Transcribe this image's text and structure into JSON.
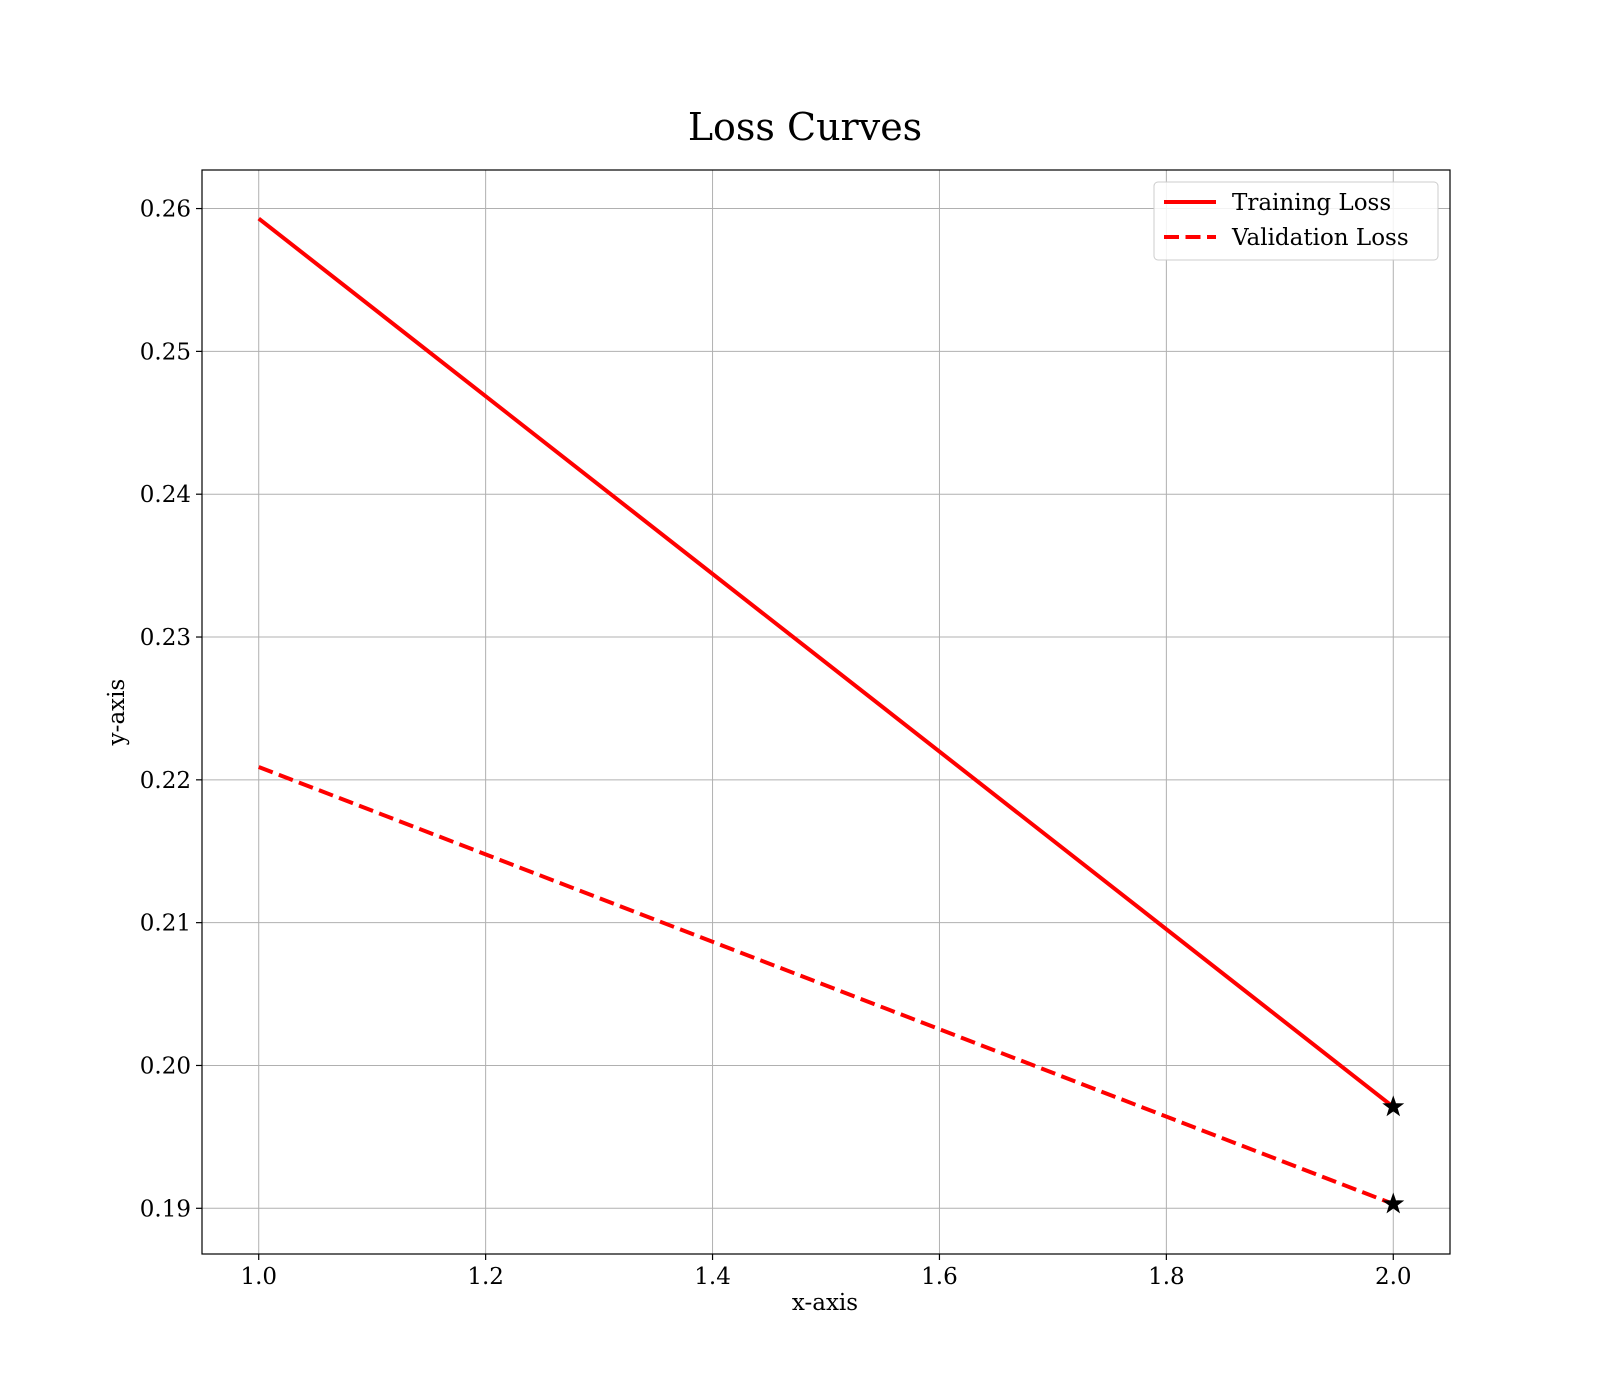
{
  "chart_data": {
    "type": "line",
    "title": "Loss Curves",
    "xlabel": "x-axis",
    "ylabel": "y-axis",
    "xlim": [
      0.95,
      2.05
    ],
    "ylim": [
      0.1868,
      0.2627
    ],
    "x_ticks": [
      1.0,
      1.2,
      1.4,
      1.6,
      1.8,
      2.0
    ],
    "x_tick_labels": [
      "1.0",
      "1.2",
      "1.4",
      "1.6",
      "1.8",
      "2.0"
    ],
    "y_ticks": [
      0.19,
      0.2,
      0.21,
      0.22,
      0.23,
      0.24,
      0.25,
      0.26
    ],
    "y_tick_labels": [
      "0.19",
      "0.20",
      "0.21",
      "0.22",
      "0.23",
      "0.24",
      "0.25",
      "0.26"
    ],
    "grid": true,
    "legend_position": "top-right",
    "series": [
      {
        "name": "Training Loss",
        "x": [
          1.0,
          2.0
        ],
        "y": [
          0.2593,
          0.1971
        ],
        "color": "#ff0000",
        "linestyle": "solid",
        "end_marker": "star"
      },
      {
        "name": "Validation Loss",
        "x": [
          1.0,
          2.0
        ],
        "y": [
          0.2209,
          0.1903
        ],
        "color": "#ff0000",
        "linestyle": "dashed",
        "end_marker": "star"
      }
    ]
  }
}
